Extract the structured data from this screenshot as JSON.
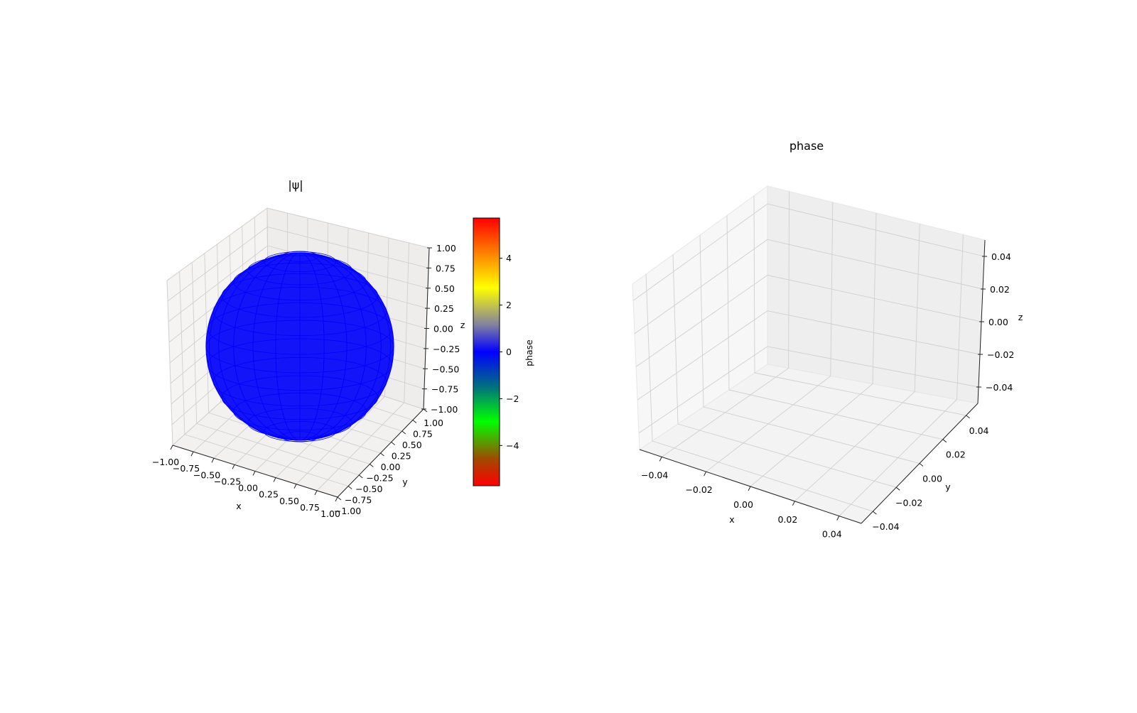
{
  "chart_data": [
    {
      "type": "surface3d",
      "title": "|ψ|",
      "xlabel": "x",
      "ylabel": "y",
      "zlabel": "z",
      "xlim": [
        -1,
        1
      ],
      "ylim": [
        -1,
        1
      ],
      "zlim": [
        -1,
        1
      ],
      "xticks": [
        "−1.00",
        "−0.75",
        "−0.50",
        "−0.25",
        "0.00",
        "0.25",
        "0.50",
        "0.75",
        "1.00"
      ],
      "yticks": [
        "−1.00",
        "−0.75",
        "−0.50",
        "−0.25",
        "0.00",
        "0.25",
        "0.50",
        "0.75",
        "1.00"
      ],
      "zticks": [
        "−1.00",
        "−0.75",
        "−0.50",
        "−0.25",
        "0.00",
        "0.25",
        "0.50",
        "0.75",
        "1.00"
      ],
      "tick_values": [
        -1,
        -0.75,
        -0.5,
        -0.25,
        0,
        0.25,
        0.5,
        0.75,
        1
      ],
      "surface": {
        "shape": "unit sphere",
        "center": [
          0,
          0,
          0
        ],
        "radius": 1,
        "color": "#0000ff"
      },
      "grid": true,
      "colorbar": {
        "label": "phase",
        "range": [
          -5.72,
          5.72
        ],
        "ticks": [
          "−4",
          "−2",
          "0",
          "2",
          "4"
        ],
        "tick_values": [
          -4,
          -2,
          0,
          2,
          4
        ],
        "colors": [
          "#ff0000",
          "#a04a00",
          "#00ff00",
          "#007080",
          "#0000ff",
          "#8080a0",
          "#ffff00",
          "#ff8000",
          "#ff0000"
        ]
      }
    },
    {
      "type": "surface3d",
      "title": "phase",
      "xlabel": "x",
      "ylabel": "y",
      "zlabel": "z",
      "xlim": [
        -0.05,
        0.05
      ],
      "ylim": [
        -0.05,
        0.05
      ],
      "zlim": [
        -0.05,
        0.05
      ],
      "xticks": [
        "−0.04",
        "−0.02",
        "0.00",
        "0.02",
        "0.04"
      ],
      "yticks": [
        "−0.04",
        "−0.02",
        "0.00",
        "0.02",
        "0.04"
      ],
      "zticks": [
        "−0.04",
        "−0.02",
        "0.00",
        "0.02",
        "0.04"
      ],
      "tick_values": [
        -0.04,
        -0.02,
        0,
        0.02,
        0.04
      ],
      "grid": true,
      "empty": true
    }
  ]
}
